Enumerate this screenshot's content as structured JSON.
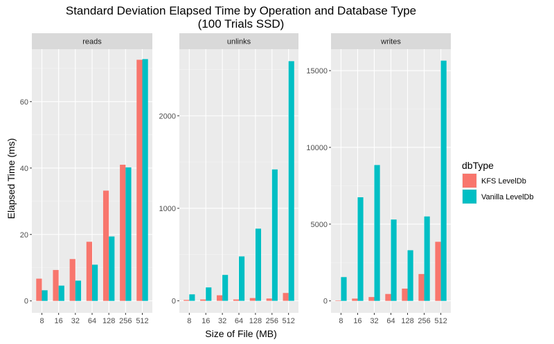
{
  "chart_data": {
    "type": "bar",
    "title": "Standard Deviation Elapsed Time by Operation and Database Type",
    "subtitle": "(100 Trials SSD)",
    "xlabel": "Size of File (MB)",
    "ylabel": "Elapsed Time (ms)",
    "categories": [
      "8",
      "16",
      "32",
      "64",
      "128",
      "256",
      "512"
    ],
    "legend": {
      "title": "dbType",
      "position": "right",
      "entries": [
        "KFS LevelDb",
        "Vanilla LevelDb"
      ]
    },
    "series_colors": [
      "#F8766D",
      "#00BFC4"
    ],
    "grid": true,
    "facets": [
      {
        "label": "reads",
        "ylim": [
          -3.6,
          75.8
        ],
        "yticks": [
          0,
          20,
          40,
          60
        ],
        "ytick_labels": [
          "0",
          "20",
          "40",
          "60"
        ],
        "series": [
          {
            "name": "KFS LevelDb",
            "values": [
              6.7,
              9.3,
              12.6,
              17.8,
              33.2,
              41.0,
              72.6
            ]
          },
          {
            "name": "Vanilla LevelDb",
            "values": [
              3.2,
              4.6,
              6.1,
              10.9,
              19.4,
              40.2,
              72.8
            ]
          }
        ]
      },
      {
        "label": "unlinks",
        "ylim": [
          -130,
          2720
        ],
        "yticks": [
          0,
          1000,
          2000
        ],
        "ytick_labels": [
          "0",
          "1000",
          "2000"
        ],
        "series": [
          {
            "name": "KFS LevelDb",
            "values": [
              10,
              15,
              60,
              15,
              30,
              25,
              85
            ]
          },
          {
            "name": "Vanilla LevelDb",
            "values": [
              70,
              145,
              280,
              480,
              780,
              1420,
              2590
            ]
          }
        ]
      },
      {
        "label": "writes",
        "ylim": [
          -780,
          16400
        ],
        "yticks": [
          0,
          5000,
          10000,
          15000
        ],
        "ytick_labels": [
          "0",
          "5000",
          "10000",
          "15000"
        ],
        "series": [
          {
            "name": "KFS LevelDb",
            "values": [
              20,
              150,
              250,
              450,
              800,
              1750,
              3850
            ]
          },
          {
            "name": "Vanilla LevelDb",
            "values": [
              1550,
              6750,
              8850,
              5300,
              3300,
              5500,
              15650
            ]
          }
        ]
      }
    ]
  }
}
